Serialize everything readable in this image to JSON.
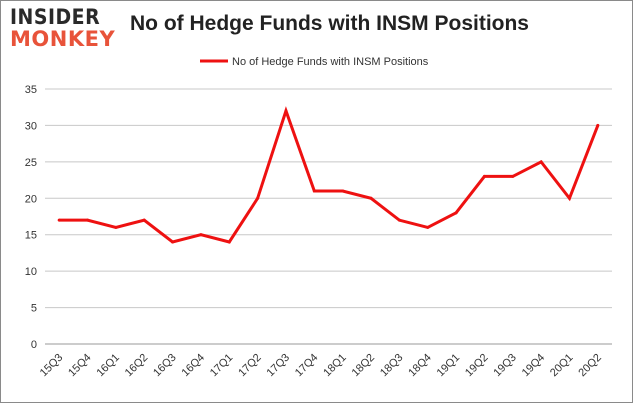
{
  "brand": {
    "line1": "INSIDER",
    "line2": "MONKEY"
  },
  "chart_data": {
    "type": "line",
    "title": "No of Hedge Funds with INSM Positions",
    "xlabel": "",
    "ylabel": "",
    "categories": [
      "15Q3",
      "15Q4",
      "16Q1",
      "16Q2",
      "16Q3",
      "16Q4",
      "17Q1",
      "17Q2",
      "17Q3",
      "17Q4",
      "18Q1",
      "18Q2",
      "18Q3",
      "18Q4",
      "19Q1",
      "19Q2",
      "19Q3",
      "19Q4",
      "20Q1",
      "20Q2"
    ],
    "series": [
      {
        "name": "No of Hedge Funds with INSM Positions",
        "values": [
          17,
          17,
          16,
          17,
          14,
          15,
          14,
          20,
          32,
          21,
          21,
          20,
          17,
          16,
          18,
          23,
          23,
          25,
          20,
          30
        ],
        "color": "#ee1111"
      }
    ],
    "ylim": [
      0,
      35
    ],
    "yticks": [
      0,
      5,
      10,
      15,
      20,
      25,
      30,
      35
    ],
    "grid": true,
    "legend": "top-center"
  }
}
